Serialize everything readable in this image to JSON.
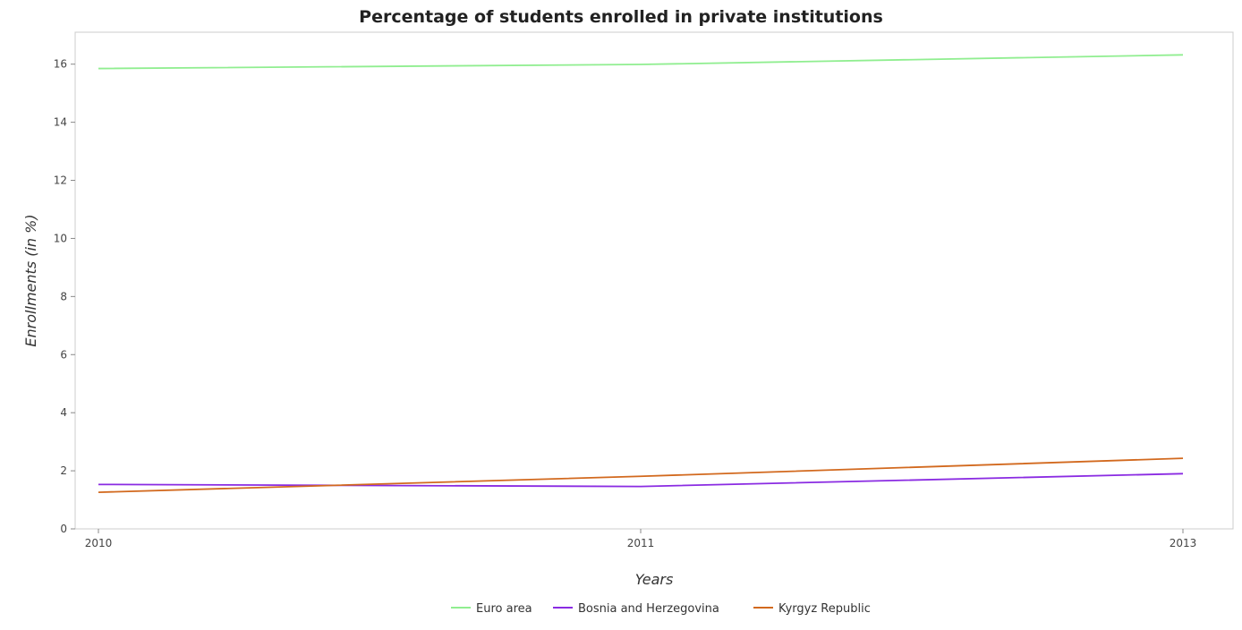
{
  "chart_data": {
    "type": "line",
    "title": "Percentage of students enrolled in private institutions",
    "xlabel": "Years",
    "ylabel": "Enrollments (in %)",
    "categories": [
      "2010",
      "2011",
      "2013"
    ],
    "ylim": [
      0,
      17.1
    ],
    "yticks": [
      "0",
      "2",
      "4",
      "6",
      "8",
      "10",
      "12",
      "14",
      "16"
    ],
    "grid": false,
    "legend_position": "bottom-center",
    "series": [
      {
        "name": "Euro area",
        "color": "#90ee90",
        "values": [
          15.85,
          15.99,
          16.32
        ]
      },
      {
        "name": "Bosnia and Herzegovina",
        "color": "#8a2be2",
        "values": [
          1.53,
          1.46,
          1.9
        ]
      },
      {
        "name": "Kyrgyz Republic",
        "color": "#d2691e",
        "values": [
          1.26,
          1.81,
          2.43
        ]
      }
    ]
  }
}
